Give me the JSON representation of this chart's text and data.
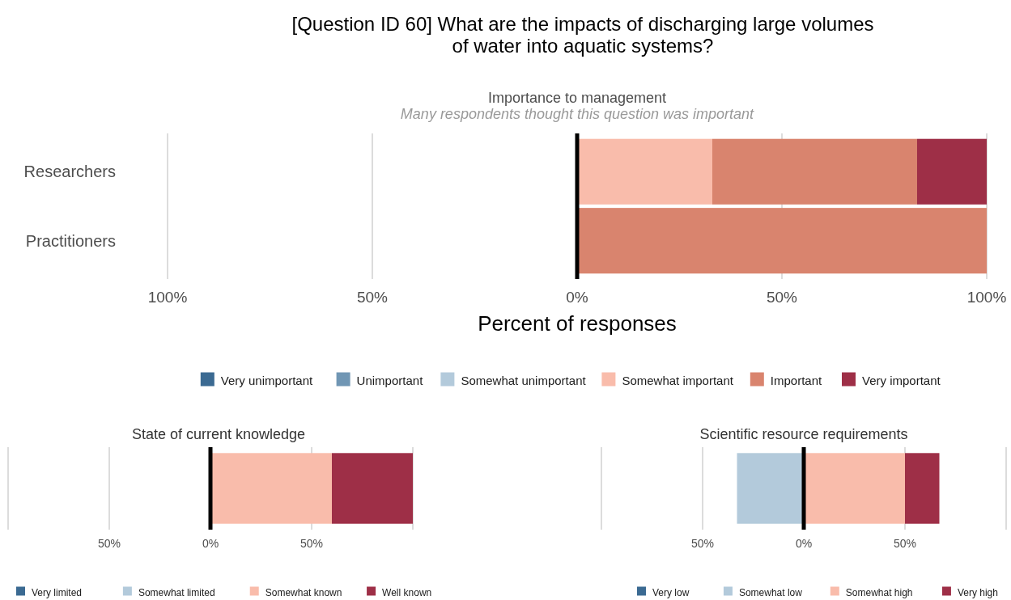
{
  "chart_data": [
    {
      "type": "bar",
      "orientation": "horizontal",
      "stacked": true,
      "title": "[Question ID 60] What are the impacts of discharging large volumes of water into aquatic systems?",
      "subtitle": "Importance to management",
      "annotations": [
        "Many respondents thought this question was important"
      ],
      "xlabel": "Percent of responses",
      "categories": [
        "Researchers",
        "Practitioners"
      ],
      "xlim": [
        -100,
        100
      ],
      "xticks": [
        {
          "value": -100,
          "label": "100%"
        },
        {
          "value": -50,
          "label": "50%"
        },
        {
          "value": 0,
          "label": "0%"
        },
        {
          "value": 50,
          "label": "50%"
        },
        {
          "value": 100,
          "label": "100%"
        }
      ],
      "grid": "x",
      "legend": "bottom",
      "ref_lines": [
        {
          "axis": "x",
          "value": 0,
          "color": "#000000"
        }
      ],
      "series": [
        {
          "name": "Very unimportant",
          "color": "#3b6a92",
          "values": [
            0,
            0
          ]
        },
        {
          "name": "Unimportant",
          "color": "#7096b4",
          "values": [
            0,
            0
          ]
        },
        {
          "name": "Somewhat unimportant",
          "color": "#b3cadb",
          "values": [
            0,
            0
          ]
        },
        {
          "name": "Somewhat important",
          "color": "#f9bcab",
          "values": [
            33,
            0
          ]
        },
        {
          "name": "Important",
          "color": "#d9846e",
          "values": [
            50,
            100
          ]
        },
        {
          "name": "Very important",
          "color": "#9e2f47",
          "values": [
            17,
            0
          ]
        }
      ]
    },
    {
      "type": "bar",
      "orientation": "horizontal",
      "stacked": true,
      "title": "State of current knowledge",
      "categories": [
        null
      ],
      "xlim": [
        -100,
        100
      ],
      "xticks": [
        {
          "value": -100,
          "label": null
        },
        {
          "value": -50,
          "label": "50%"
        },
        {
          "value": 0,
          "label": "0%"
        },
        {
          "value": 50,
          "label": "50%"
        },
        {
          "value": 100,
          "label": null
        }
      ],
      "grid": "x",
      "legend": "bottom",
      "ref_lines": [
        {
          "axis": "x",
          "value": 0,
          "color": "#000000"
        }
      ],
      "series": [
        {
          "name": "Very limited",
          "color": "#3b6a92",
          "values": [
            0
          ]
        },
        {
          "name": "Somewhat limited",
          "color": "#b3cadb",
          "values": [
            0
          ]
        },
        {
          "name": "Somewhat known",
          "color": "#f9bcab",
          "values": [
            60
          ]
        },
        {
          "name": "Well known",
          "color": "#9e2f47",
          "values": [
            40
          ]
        }
      ]
    },
    {
      "type": "bar",
      "orientation": "horizontal",
      "stacked": true,
      "title": "Scientific resource requirements",
      "categories": [
        null
      ],
      "xlim": [
        -100,
        100
      ],
      "xticks": [
        {
          "value": -100,
          "label": null
        },
        {
          "value": -50,
          "label": "50%"
        },
        {
          "value": 0,
          "label": "0%"
        },
        {
          "value": 50,
          "label": "50%"
        },
        {
          "value": 100,
          "label": null
        }
      ],
      "grid": "x",
      "legend": "bottom",
      "ref_lines": [
        {
          "axis": "x",
          "value": 0,
          "color": "#000000"
        }
      ],
      "series": [
        {
          "name": "Very low",
          "color": "#3b6a92",
          "values": [
            0
          ]
        },
        {
          "name": "Somewhat low",
          "color": "#b3cadb",
          "values": [
            -33
          ]
        },
        {
          "name": "Somewhat high",
          "color": "#f9bcab",
          "values": [
            50
          ]
        },
        {
          "name": "Very high",
          "color": "#9e2f47",
          "values": [
            17
          ]
        }
      ]
    }
  ]
}
